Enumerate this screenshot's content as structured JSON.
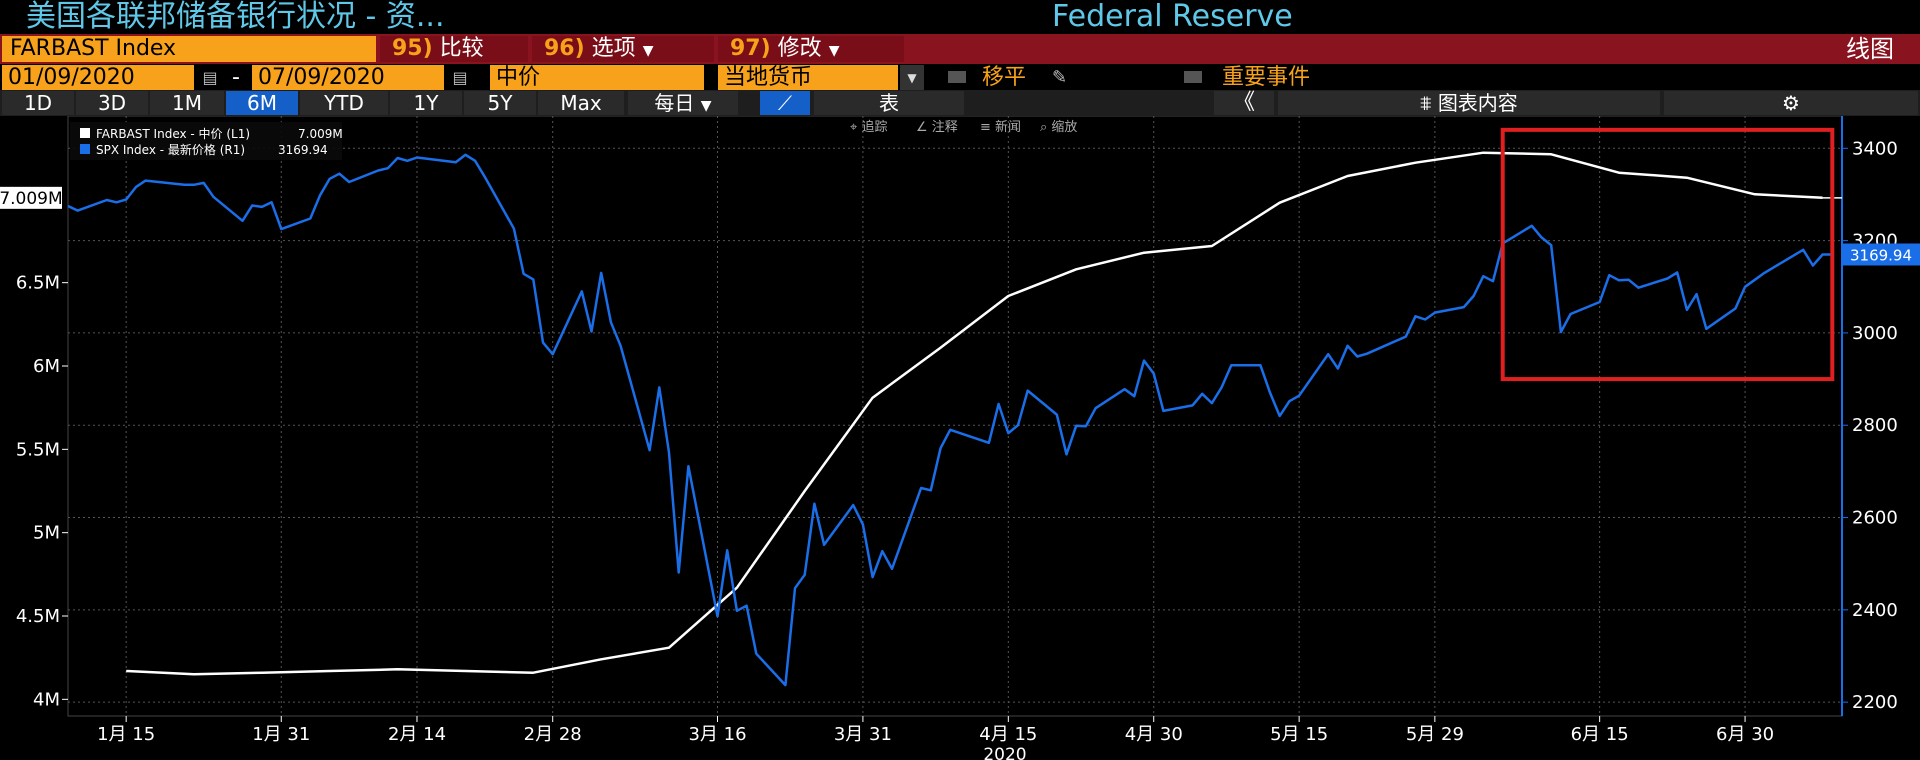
{
  "header": {
    "title": "美国各联邦储备银行状况 - 资...",
    "right_title": "Federal Reserve"
  },
  "toolbar": {
    "ticker": "FARBAST Index",
    "menu1_num": "95)",
    "menu1_label": "比较",
    "menu2_num": "96)",
    "menu2_label": "选项",
    "menu3_num": "97)",
    "menu3_label": "修改",
    "view_label": "线图"
  },
  "controls": {
    "start_date": "01/09/2020",
    "dash": "-",
    "end_date": "07/09/2020",
    "price_type": "中价",
    "currency": "当地货币",
    "shift_label": "移平",
    "events_label": "重要事件"
  },
  "periods": [
    "1D",
    "3D",
    "1M",
    "6M",
    "YTD",
    "1Y",
    "5Y",
    "Max"
  ],
  "active_period": "6M",
  "frequency": "每日",
  "table_label": "表",
  "collapse_label": "《",
  "chart_content_label": "图表内容",
  "chart_tools": [
    "追踪",
    "注释",
    "新闻",
    "缩放"
  ],
  "colors": {
    "fed": "#ffffff",
    "spx": "#1a6ee8",
    "highlight": "#e02020",
    "grid": "#555555",
    "accent": "#f7a21a"
  },
  "chart_data": {
    "type": "line",
    "title": "",
    "legend": [
      {
        "label": "FARBAST Index - 中价 (L1)",
        "value": "7.009M"
      },
      {
        "label": "SPX Index - 最新价格 (R1)",
        "value": "3169.94"
      }
    ],
    "last_value_labels": {
      "left": "7.009M",
      "right": "3169.94"
    },
    "y_left": {
      "ticks": [
        4,
        4.5,
        5,
        5.5,
        6,
        6.5
      ],
      "tick_labels": [
        "4M",
        "4.5M",
        "5M",
        "5.5M",
        "6M",
        "6.5M"
      ],
      "range": [
        3.9,
        7.5
      ],
      "unit": "M"
    },
    "y_right": {
      "ticks": [
        2200,
        2400,
        2600,
        2800,
        3000,
        3200,
        3400
      ],
      "range": [
        2170,
        3470
      ]
    },
    "x_axis": {
      "start": "2020-01-09",
      "end": "2020-07-10",
      "year_label": "2020",
      "tick_labels": [
        "1月 15",
        "1月 31",
        "2月 14",
        "2月 28",
        "3月 16",
        "3月 31",
        "4月 15",
        "4月 30",
        "5月 15",
        "5月 29",
        "6月 15",
        "6月 30"
      ],
      "tick_dates": [
        "2020-01-15",
        "2020-01-31",
        "2020-02-14",
        "2020-02-28",
        "2020-03-16",
        "2020-03-31",
        "2020-04-15",
        "2020-04-30",
        "2020-05-15",
        "2020-05-29",
        "2020-06-15",
        "2020-06-30"
      ]
    },
    "highlight_box": {
      "from": "2020-06-05",
      "to": "2020-07-09",
      "low": 2900,
      "high": 3440
    },
    "series": [
      {
        "name": "FARBAST Index",
        "axis": "left",
        "color": "#ffffff",
        "x": [
          "2020-01-15",
          "2020-01-22",
          "2020-01-29",
          "2020-02-05",
          "2020-02-12",
          "2020-02-19",
          "2020-02-26",
          "2020-03-04",
          "2020-03-11",
          "2020-03-18",
          "2020-03-25",
          "2020-04-01",
          "2020-04-08",
          "2020-04-15",
          "2020-04-22",
          "2020-04-29",
          "2020-05-06",
          "2020-05-13",
          "2020-05-20",
          "2020-05-27",
          "2020-06-03",
          "2020-06-10",
          "2020-06-17",
          "2020-06-24",
          "2020-07-01",
          "2020-07-08"
        ],
        "values": [
          4.17,
          4.15,
          4.16,
          4.17,
          4.18,
          4.17,
          4.16,
          4.24,
          4.31,
          4.67,
          5.25,
          5.81,
          6.11,
          6.42,
          6.58,
          6.68,
          6.72,
          6.98,
          7.14,
          7.22,
          7.28,
          7.27,
          7.16,
          7.13,
          7.03,
          7.009
        ]
      },
      {
        "name": "SPX Index",
        "axis": "right",
        "color": "#1a6ee8",
        "x": [
          "2020-01-09",
          "2020-01-10",
          "2020-01-13",
          "2020-01-14",
          "2020-01-15",
          "2020-01-16",
          "2020-01-17",
          "2020-01-21",
          "2020-01-22",
          "2020-01-23",
          "2020-01-24",
          "2020-01-27",
          "2020-01-28",
          "2020-01-29",
          "2020-01-30",
          "2020-01-31",
          "2020-02-03",
          "2020-02-04",
          "2020-02-05",
          "2020-02-06",
          "2020-02-07",
          "2020-02-10",
          "2020-02-11",
          "2020-02-12",
          "2020-02-13",
          "2020-02-14",
          "2020-02-18",
          "2020-02-19",
          "2020-02-20",
          "2020-02-21",
          "2020-02-24",
          "2020-02-25",
          "2020-02-26",
          "2020-02-27",
          "2020-02-28",
          "2020-03-02",
          "2020-03-03",
          "2020-03-04",
          "2020-03-05",
          "2020-03-06",
          "2020-03-09",
          "2020-03-10",
          "2020-03-11",
          "2020-03-12",
          "2020-03-13",
          "2020-03-16",
          "2020-03-17",
          "2020-03-18",
          "2020-03-19",
          "2020-03-20",
          "2020-03-23",
          "2020-03-24",
          "2020-03-25",
          "2020-03-26",
          "2020-03-27",
          "2020-03-30",
          "2020-03-31",
          "2020-04-01",
          "2020-04-02",
          "2020-04-03",
          "2020-04-06",
          "2020-04-07",
          "2020-04-08",
          "2020-04-09",
          "2020-04-13",
          "2020-04-14",
          "2020-04-15",
          "2020-04-16",
          "2020-04-17",
          "2020-04-20",
          "2020-04-21",
          "2020-04-22",
          "2020-04-23",
          "2020-04-24",
          "2020-04-27",
          "2020-04-28",
          "2020-04-29",
          "2020-04-30",
          "2020-05-01",
          "2020-05-04",
          "2020-05-05",
          "2020-05-06",
          "2020-05-07",
          "2020-05-08",
          "2020-05-11",
          "2020-05-12",
          "2020-05-13",
          "2020-05-14",
          "2020-05-15",
          "2020-05-18",
          "2020-05-19",
          "2020-05-20",
          "2020-05-21",
          "2020-05-22",
          "2020-05-26",
          "2020-05-27",
          "2020-05-28",
          "2020-05-29",
          "2020-06-01",
          "2020-06-02",
          "2020-06-03",
          "2020-06-04",
          "2020-06-05",
          "2020-06-08",
          "2020-06-09",
          "2020-06-10",
          "2020-06-11",
          "2020-06-12",
          "2020-06-15",
          "2020-06-16",
          "2020-06-17",
          "2020-06-18",
          "2020-06-19",
          "2020-06-22",
          "2020-06-23",
          "2020-06-24",
          "2020-06-25",
          "2020-06-26",
          "2020-06-29",
          "2020-06-30",
          "2020-07-01",
          "2020-07-02",
          "2020-07-06",
          "2020-07-07",
          "2020-07-08",
          "2020-07-09"
        ],
        "values": [
          3275,
          3265,
          3288,
          3283,
          3289,
          3316,
          3330,
          3321,
          3321,
          3325,
          3295,
          3243,
          3276,
          3273,
          3283,
          3225,
          3248,
          3298,
          3334,
          3345,
          3327,
          3352,
          3357,
          3379,
          3373,
          3380,
          3370,
          3386,
          3373,
          3338,
          3226,
          3128,
          3116,
          2979,
          2954,
          3090,
          3003,
          3130,
          3023,
          2972,
          2746,
          2882,
          2741,
          2481,
          2711,
          2386,
          2529,
          2398,
          2409,
          2305,
          2237,
          2447,
          2476,
          2630,
          2541,
          2627,
          2585,
          2471,
          2527,
          2489,
          2664,
          2659,
          2750,
          2790,
          2762,
          2846,
          2783,
          2800,
          2875,
          2823,
          2737,
          2799,
          2798,
          2837,
          2878,
          2863,
          2940,
          2912,
          2831,
          2843,
          2868,
          2848,
          2882,
          2930,
          2930,
          2870,
          2820,
          2852,
          2864,
          2954,
          2923,
          2972,
          2949,
          2955,
          2992,
          3036,
          3029,
          3044,
          3056,
          3080,
          3123,
          3112,
          3194,
          3232,
          3207,
          3190,
          3002,
          3041,
          3067,
          3125,
          3114,
          3115,
          3098,
          3118,
          3131,
          3050,
          3084,
          3009,
          3053,
          3100,
          3115,
          3130,
          3180,
          3146,
          3170,
          3169.94
        ]
      }
    ]
  }
}
